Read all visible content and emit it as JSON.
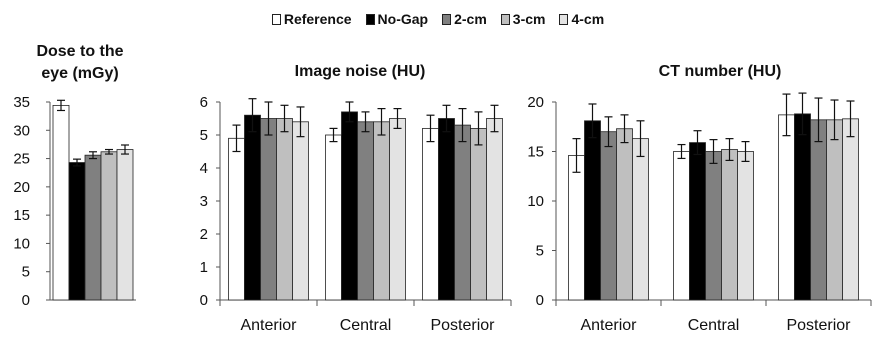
{
  "legend": [
    {
      "name": "Reference",
      "color": "#ffffff"
    },
    {
      "name": "No-Gap",
      "color": "#000000"
    },
    {
      "name": "2-cm",
      "color": "#808080"
    },
    {
      "name": "3-cm",
      "color": "#bfbfbf"
    },
    {
      "name": "4-cm",
      "color": "#e3e3e3"
    }
  ],
  "chart_data": [
    {
      "type": "bar",
      "title": "Dose to the eye (mGy)",
      "title_lines": [
        "Dose to the",
        "eye (mGy)"
      ],
      "categories": [
        ""
      ],
      "ylim": [
        0,
        35
      ],
      "yticks": [
        0,
        5,
        10,
        15,
        20,
        25,
        30,
        35
      ],
      "grid": false,
      "series": [
        {
          "name": "Reference",
          "values": [
            34.4
          ],
          "errors": [
            0.9
          ]
        },
        {
          "name": "No-Gap",
          "values": [
            24.3
          ],
          "errors": [
            0.6
          ]
        },
        {
          "name": "2-cm",
          "values": [
            25.6
          ],
          "errors": [
            0.6
          ]
        },
        {
          "name": "3-cm",
          "values": [
            26.2
          ],
          "errors": [
            0.4
          ]
        },
        {
          "name": "4-cm",
          "values": [
            26.6
          ],
          "errors": [
            0.8
          ]
        }
      ]
    },
    {
      "type": "bar",
      "title": "Image noise (HU)",
      "title_lines": [
        "Image noise (HU)"
      ],
      "categories": [
        "Anterior",
        "Central",
        "Posterior"
      ],
      "ylim": [
        0,
        6
      ],
      "yticks": [
        0,
        1,
        2,
        3,
        4,
        5,
        6
      ],
      "grid": false,
      "series": [
        {
          "name": "Reference",
          "values": [
            4.9,
            5.0,
            5.2
          ],
          "errors": [
            0.4,
            0.2,
            0.4
          ]
        },
        {
          "name": "No-Gap",
          "values": [
            5.6,
            5.7,
            5.5
          ],
          "errors": [
            0.5,
            0.3,
            0.4
          ]
        },
        {
          "name": "2-cm",
          "values": [
            5.5,
            5.4,
            5.3
          ],
          "errors": [
            0.5,
            0.3,
            0.5
          ]
        },
        {
          "name": "3-cm",
          "values": [
            5.5,
            5.4,
            5.2
          ],
          "errors": [
            0.4,
            0.4,
            0.5
          ]
        },
        {
          "name": "4-cm",
          "values": [
            5.4,
            5.5,
            5.5
          ],
          "errors": [
            0.45,
            0.3,
            0.4
          ]
        }
      ]
    },
    {
      "type": "bar",
      "title": "CT number (HU)",
      "title_lines": [
        "CT number (HU)"
      ],
      "categories": [
        "Anterior",
        "Central",
        "Posterior"
      ],
      "ylim": [
        0,
        20
      ],
      "yticks": [
        0,
        5,
        10,
        15,
        20
      ],
      "grid": false,
      "series": [
        {
          "name": "Reference",
          "values": [
            14.6,
            15.0,
            18.7
          ],
          "errors": [
            1.7,
            0.7,
            2.1
          ]
        },
        {
          "name": "No-Gap",
          "values": [
            18.1,
            15.9,
            18.8
          ],
          "errors": [
            1.7,
            1.2,
            2.1
          ]
        },
        {
          "name": "2-cm",
          "values": [
            17.0,
            15.0,
            18.2
          ],
          "errors": [
            1.5,
            1.2,
            2.2
          ]
        },
        {
          "name": "3-cm",
          "values": [
            17.3,
            15.2,
            18.2
          ],
          "errors": [
            1.4,
            1.1,
            2.0
          ]
        },
        {
          "name": "4-cm",
          "values": [
            16.3,
            15.0,
            18.3
          ],
          "errors": [
            1.8,
            1.0,
            1.8
          ]
        }
      ]
    }
  ]
}
